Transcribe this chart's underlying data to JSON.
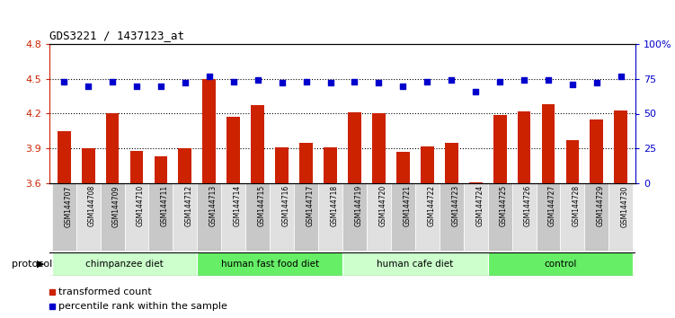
{
  "title": "GDS3221 / 1437123_at",
  "samples": [
    "GSM144707",
    "GSM144708",
    "GSM144709",
    "GSM144710",
    "GSM144711",
    "GSM144712",
    "GSM144713",
    "GSM144714",
    "GSM144715",
    "GSM144716",
    "GSM144717",
    "GSM144718",
    "GSM144719",
    "GSM144720",
    "GSM144721",
    "GSM144722",
    "GSM144723",
    "GSM144724",
    "GSM144725",
    "GSM144726",
    "GSM144727",
    "GSM144728",
    "GSM144729",
    "GSM144730"
  ],
  "bar_values": [
    4.05,
    3.9,
    4.2,
    3.88,
    3.83,
    3.9,
    4.5,
    4.17,
    4.27,
    3.91,
    3.95,
    3.91,
    4.21,
    4.2,
    3.87,
    3.92,
    3.95,
    3.61,
    4.19,
    4.22,
    4.28,
    3.97,
    4.15,
    4.23
  ],
  "percentile_values": [
    73,
    70,
    73,
    70,
    70,
    72,
    77,
    73,
    74,
    72,
    73,
    72,
    73,
    72,
    70,
    73,
    74,
    66,
    73,
    74,
    74,
    71,
    72,
    77
  ],
  "bar_color": "#cc2200",
  "percentile_color": "#0000cc",
  "ylim_left": [
    3.6,
    4.8
  ],
  "ylim_right": [
    0,
    100
  ],
  "yticks_left": [
    3.6,
    3.9,
    4.2,
    4.5,
    4.8
  ],
  "yticks_right": [
    0,
    25,
    50,
    75,
    100
  ],
  "ytick_labels_right": [
    "0",
    "25",
    "50",
    "75",
    "100%"
  ],
  "hlines": [
    3.9,
    4.2,
    4.5
  ],
  "groups": [
    {
      "label": "chimpanzee diet",
      "start": 0,
      "end": 6,
      "color": "#ccffcc"
    },
    {
      "label": "human fast food diet",
      "start": 6,
      "end": 12,
      "color": "#66ee66"
    },
    {
      "label": "human cafe diet",
      "start": 12,
      "end": 18,
      "color": "#ccffcc"
    },
    {
      "label": "control",
      "start": 18,
      "end": 24,
      "color": "#66ee66"
    }
  ],
  "xtick_bg_even": "#c8c8c8",
  "xtick_bg_odd": "#e0e0e0",
  "protocol_label": "protocol",
  "legend_items": [
    {
      "label": "transformed count",
      "color": "#cc2200"
    },
    {
      "label": "percentile rank within the sample",
      "color": "#0000cc"
    }
  ]
}
